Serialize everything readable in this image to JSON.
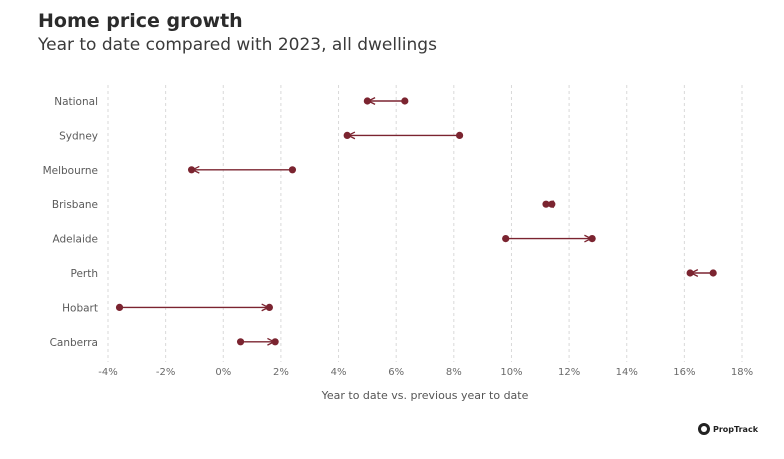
{
  "header": {
    "title": "Home price growth",
    "subtitle": "Year to date compared with 2023, all dwellings"
  },
  "logo": {
    "text": "PropTrack"
  },
  "colors": {
    "series": "#7b2430",
    "grid": "#d9d9d9"
  },
  "chart_data": {
    "type": "dumbbell",
    "title": "Home price growth",
    "subtitle": "Year to date compared with 2023, all dwellings",
    "xlabel": "Year to date vs. previous year to date",
    "ylabel": "",
    "xlim": [
      -4,
      18
    ],
    "x_ticks": [
      -4,
      -2,
      0,
      2,
      4,
      6,
      8,
      10,
      12,
      14,
      16,
      18
    ],
    "x_tick_labels": [
      "-4%",
      "-2%",
      "0%",
      "2%",
      "4%",
      "6%",
      "8%",
      "10%",
      "12%",
      "14%",
      "16%",
      "18%"
    ],
    "grid": "vertical",
    "categories": [
      "National",
      "Sydney",
      "Melbourne",
      "Brisbane",
      "Adelaide",
      "Perth",
      "Hobart",
      "Canberra"
    ],
    "series": [
      {
        "values": [
          6.3,
          8.2,
          2.4,
          11.4,
          9.8,
          17.0,
          -3.6,
          0.6
        ]
      },
      {
        "values": [
          5.0,
          4.3,
          -1.1,
          11.2,
          12.8,
          16.2,
          1.6,
          1.8
        ]
      }
    ]
  }
}
